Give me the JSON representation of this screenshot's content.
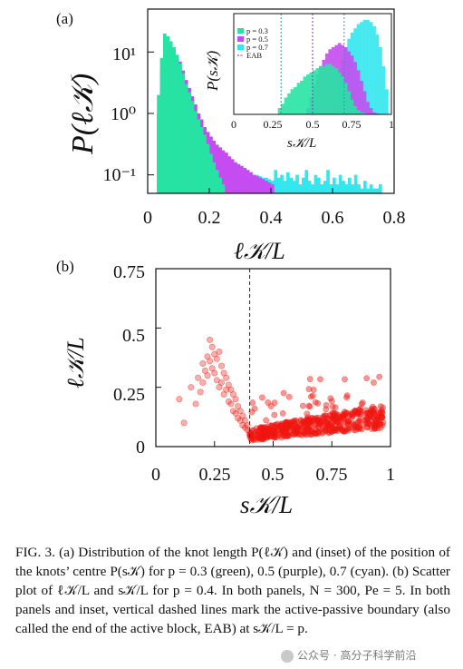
{
  "panel_a": {
    "label": "(a)",
    "ylabel": "P(ℓ𝒦)",
    "xlabel": "ℓ𝒦/L",
    "xticks": [
      "0",
      "0.2",
      "0.4",
      "0.6",
      "0.8"
    ],
    "yticks": [
      "10¹",
      "10⁰",
      "10⁻¹"
    ],
    "inset": {
      "ylabel": "P(s𝒦)",
      "xlabel": "s𝒦/L",
      "xticks": [
        "0",
        "0.25",
        "0.5",
        "0.75",
        "1"
      ],
      "legend": [
        "p = 0.3",
        "p = 0.5",
        "p = 0.7",
        "EAB"
      ]
    }
  },
  "panel_b": {
    "label": "(b)",
    "ylabel": "ℓ𝒦/L",
    "xlabel": "s𝒦/L",
    "xticks": [
      "0",
      "0.25",
      "0.5",
      "0.75",
      "1"
    ],
    "yticks": [
      "0",
      "0.25",
      "0.5",
      "0.75"
    ]
  },
  "colors": {
    "green": "#27e3a3",
    "purple": "#c54cf0",
    "cyan": "#33e7ee",
    "red": "#f0160f"
  },
  "caption": {
    "text": "FIG. 3.   (a) Distribution of the knot length P(ℓ𝒦) and (inset) of the position of the knots’ centre P(s𝒦) for p = 0.3 (green), 0.5 (purple), 0.7 (cyan). (b) Scatter plot of ℓ𝒦/L and s𝒦/L for p = 0.4. In both panels, N = 300, Pe = 5. In both panels and inset, vertical dashed lines mark the active-passive boundary (also called the end of the active block, EAB) at s𝒦/L = p."
  },
  "watermark": "公众号 · 高分子科学前沿",
  "chart_data": [
    {
      "type": "bar",
      "title": "",
      "xlabel": "ℓ𝒦/L",
      "ylabel": "P(ℓ𝒦)",
      "yscale": "log",
      "xlim": [
        0,
        0.8
      ],
      "ylim": [
        0.05,
        50
      ],
      "bin_width": 0.01,
      "series": [
        {
          "name": "p = 0.3",
          "start": 0.03,
          "values": [
            2.0,
            8.0,
            20.0,
            18.0,
            15.0,
            12.0,
            9.0,
            6.5,
            4.5,
            3.0,
            2.2,
            1.6,
            1.1,
            0.8,
            0.6,
            0.45,
            0.32,
            0.22,
            0.16,
            0.12,
            0.09,
            0.07
          ]
        },
        {
          "name": "p = 0.5",
          "start": 0.03,
          "values": [
            1.0,
            5.0,
            14.0,
            16.0,
            14.0,
            11.0,
            9.0,
            7.0,
            5.0,
            3.5,
            2.6,
            1.9,
            1.4,
            1.0,
            0.8,
            0.6,
            0.5,
            0.42,
            0.36,
            0.31,
            0.28,
            0.25,
            0.23,
            0.2,
            0.18,
            0.16,
            0.15,
            0.14,
            0.13,
            0.12,
            0.11,
            0.1,
            0.095,
            0.09,
            0.085,
            0.08,
            0.075,
            0.07
          ]
        },
        {
          "name": "p = 0.7",
          "start": 0.03,
          "values": [
            0.8,
            3.0,
            9.0,
            12.0,
            11.0,
            9.0,
            7.5,
            6.0,
            4.5,
            3.3,
            2.5,
            1.8,
            1.3,
            1.0,
            0.8,
            0.6,
            0.5,
            0.42,
            0.36,
            0.3,
            0.26,
            0.23,
            0.2,
            0.18,
            0.16,
            0.15,
            0.14,
            0.13,
            0.12,
            0.12,
            0.11,
            0.1,
            0.1,
            0.095,
            0.09,
            0.09,
            0.085,
            0.08,
            0.12,
            0.09,
            0.1,
            0.08,
            0.11,
            0.09,
            0.08,
            0.1,
            0.07,
            0.09,
            0.12,
            0.08,
            0.07,
            0.1,
            0.09,
            0.07,
            0.08,
            0.12,
            0.07,
            0.09,
            0.07,
            0.1,
            0.08,
            0.07,
            0.09,
            0.07,
            0.1,
            0.07,
            0.06,
            0.08,
            0.06,
            0.07,
            0.06,
            0.06,
            0.07
          ]
        }
      ]
    },
    {
      "type": "bar",
      "title": "",
      "xlabel": "s𝒦/L",
      "ylabel": "P(s𝒦)",
      "xlim": [
        0,
        1
      ],
      "bin_width": 0.02,
      "vlines": [
        0.3,
        0.5,
        0.7
      ],
      "series": [
        {
          "name": "p = 0.3",
          "start": 0.28,
          "values": [
            0.3,
            0.5,
            0.8,
            1.0,
            1.2,
            1.3,
            1.5,
            1.6,
            1.8,
            1.9,
            2.0,
            2.1,
            2.2,
            2.3,
            2.3,
            2.4,
            2.4,
            2.3,
            2.2,
            2.0,
            1.8,
            1.5,
            1.1,
            0.7,
            0.4,
            0.2,
            0.1,
            0.05,
            0.02,
            0.01,
            0.01,
            0.01,
            0.0,
            0.0
          ]
        },
        {
          "name": "p = 0.5",
          "start": 0.46,
          "values": [
            0.3,
            0.8,
            1.4,
            1.9,
            2.3,
            2.6,
            2.9,
            3.1,
            3.2,
            3.3,
            3.4,
            3.3,
            3.2,
            3.0,
            2.8,
            2.5,
            2.1,
            1.6,
            1.1,
            0.6,
            0.3,
            0.1,
            0.05,
            0.02,
            0.01
          ]
        },
        {
          "name": "p = 0.7",
          "start": 0.64,
          "values": [
            0.6,
            1.6,
            2.6,
            3.2,
            3.6,
            3.9,
            4.1,
            4.3,
            4.4,
            4.5,
            4.5,
            4.4,
            4.2,
            3.8,
            3.2,
            2.3,
            1.2
          ]
        }
      ]
    },
    {
      "type": "scatter",
      "title": "",
      "xlabel": "s𝒦/L",
      "ylabel": "ℓ𝒦/L",
      "xlim": [
        0,
        1
      ],
      "ylim": [
        0,
        0.75
      ],
      "vline": 0.4,
      "series": [
        {
          "name": "",
          "x": [
            0.1,
            0.12,
            0.15,
            0.17,
            0.18,
            0.19,
            0.2,
            0.2,
            0.21,
            0.22,
            0.22,
            0.23,
            0.23,
            0.24,
            0.24,
            0.25,
            0.25,
            0.26,
            0.26,
            0.27,
            0.27,
            0.28,
            0.28,
            0.29,
            0.29,
            0.3,
            0.3,
            0.31,
            0.31,
            0.32,
            0.32,
            0.33,
            0.33,
            0.34,
            0.34,
            0.35,
            0.35,
            0.36,
            0.36,
            0.37,
            0.37,
            0.38,
            0.38,
            0.39,
            0.39,
            0.4,
            0.4
          ],
          "y": [
            0.2,
            0.1,
            0.25,
            0.18,
            0.29,
            0.23,
            0.35,
            0.27,
            0.32,
            0.38,
            0.3,
            0.45,
            0.36,
            0.42,
            0.33,
            0.39,
            0.31,
            0.37,
            0.28,
            0.4,
            0.25,
            0.34,
            0.27,
            0.31,
            0.22,
            0.29,
            0.24,
            0.26,
            0.19,
            0.24,
            0.18,
            0.22,
            0.15,
            0.2,
            0.14,
            0.17,
            0.12,
            0.15,
            0.11,
            0.13,
            0.09,
            0.11,
            0.08,
            0.09,
            0.07,
            0.06,
            0.05
          ]
        },
        {
          "name": "",
          "x_range": [
            0.4,
            0.97
          ],
          "y_range": [
            0.03,
            0.32
          ],
          "density": "dense band rising from ~0.06 at 0.4 to ~0.13 at 0.9"
        }
      ]
    }
  ]
}
